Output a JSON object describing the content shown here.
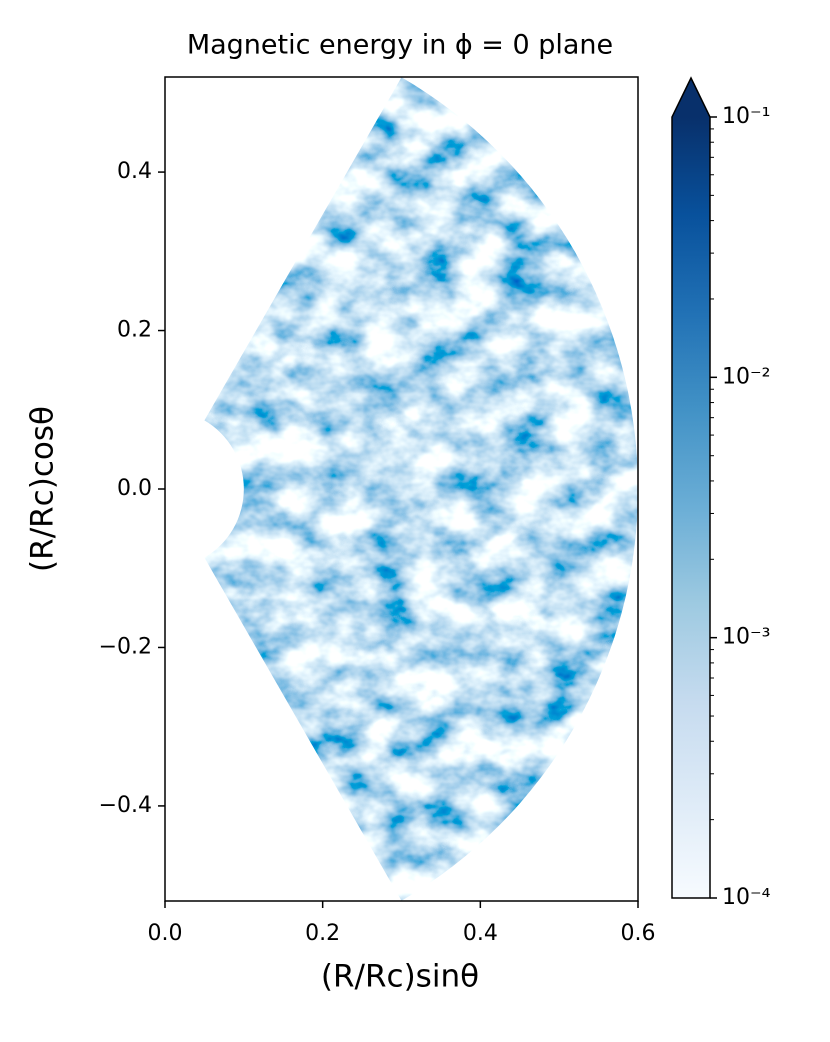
{
  "chart_data": {
    "type": "field",
    "title": "Magnetic energy in ϕ = 0 plane",
    "xlabel": "(R/Rc)sinθ",
    "ylabel": "(R/Rc)cosθ",
    "xlim": [
      0,
      0.6
    ],
    "ylim": [
      -0.52,
      0.52
    ],
    "xticks": [
      {
        "value": 0,
        "label": "0.0"
      },
      0.2,
      0.4,
      0.6
    ],
    "yticks": [
      {
        "value": -0.4,
        "label": "−0.4"
      },
      {
        "value": -0.2,
        "label": "−0.2"
      },
      {
        "value": 0,
        "label": "0.0"
      },
      0.2,
      0.4
    ],
    "domain": {
      "r": [
        0.1,
        0.6
      ],
      "theta_deg": [
        30,
        150
      ]
    },
    "colormap": "Blues",
    "color_log": true,
    "color_extend": "max",
    "clim": [
      0.0001,
      0.1
    ],
    "cticks": [
      {
        "value": 0.0001,
        "label": "10⁻⁴"
      },
      {
        "value": 0.001,
        "label": "10⁻³"
      },
      {
        "value": 0.01,
        "label": "10⁻²"
      },
      {
        "value": 0.1,
        "label": "10⁻¹"
      }
    ],
    "cticks_minor": [
      0.0002,
      0.0003,
      0.0004,
      0.0005,
      0.0006,
      0.0007,
      0.0008,
      0.0009,
      0.002,
      0.003,
      0.004,
      0.005,
      0.006,
      0.007,
      0.008,
      0.009,
      0.02,
      0.03,
      0.04,
      0.05,
      0.06,
      0.07,
      0.08,
      0.09
    ]
  }
}
